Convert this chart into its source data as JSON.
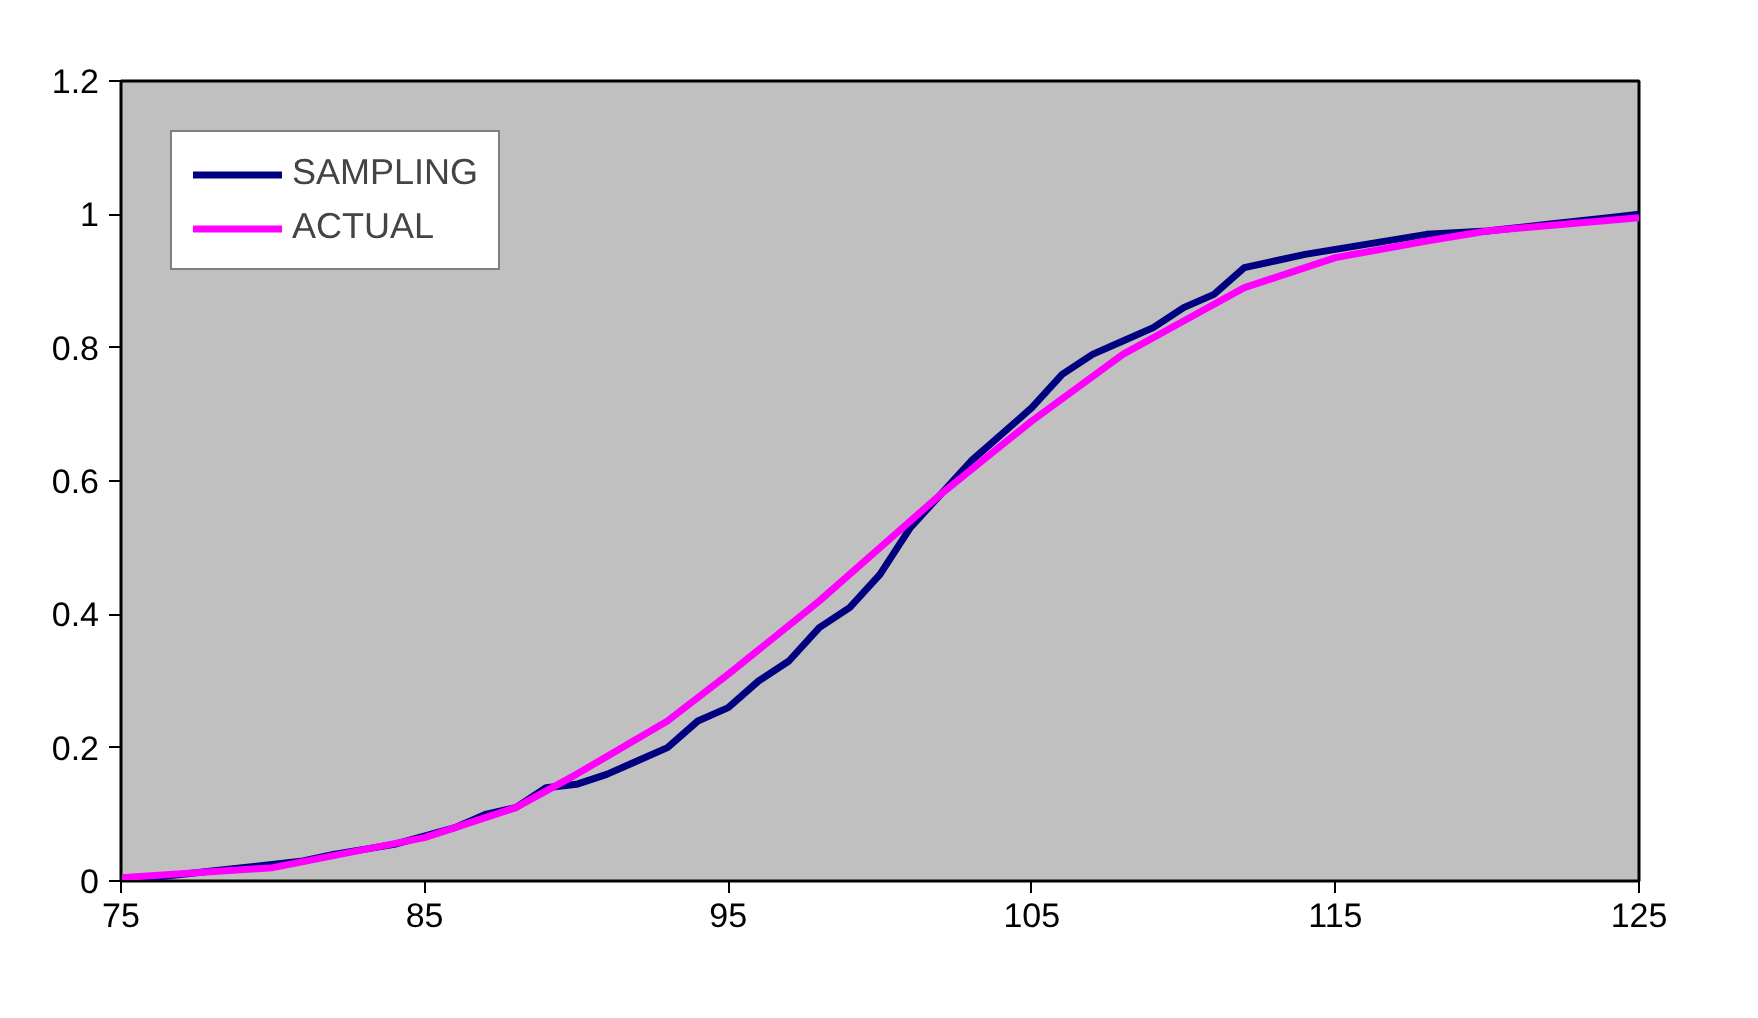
{
  "chart_data": {
    "type": "line",
    "xlim": [
      75,
      125
    ],
    "ylim": [
      0,
      1.2
    ],
    "xticks": [
      75,
      85,
      95,
      105,
      115,
      125
    ],
    "yticks": [
      0,
      {
        "value": 0.2,
        "label": "0.2"
      },
      {
        "value": 0.4,
        "label": "0.4"
      },
      {
        "value": 0.6,
        "label": "0.6"
      },
      {
        "value": 0.8,
        "label": "0.8"
      },
      1,
      {
        "value": 1.2,
        "label": "1.2"
      }
    ],
    "grid": false,
    "legend": "top left",
    "series": [
      {
        "name": "SAMPLING",
        "color": "#000080",
        "x": [
          75,
          78,
          81,
          82,
          84,
          86,
          87,
          88,
          89,
          90,
          91,
          92,
          93,
          94,
          95,
          96,
          97,
          98,
          99,
          100,
          101,
          102,
          103,
          104,
          105,
          106,
          107,
          108,
          109,
          110,
          111,
          112,
          113,
          114,
          116,
          118,
          120,
          122,
          124,
          125
        ],
        "values": [
          0.0,
          0.015,
          0.03,
          0.04,
          0.055,
          0.08,
          0.1,
          0.11,
          0.14,
          0.145,
          0.16,
          0.18,
          0.2,
          0.24,
          0.26,
          0.3,
          0.33,
          0.38,
          0.41,
          0.46,
          0.53,
          0.58,
          0.63,
          0.67,
          0.71,
          0.76,
          0.79,
          0.81,
          0.83,
          0.86,
          0.88,
          0.92,
          0.93,
          0.94,
          0.955,
          0.97,
          0.975,
          0.985,
          0.995,
          1.0
        ]
      },
      {
        "name": "ACTUAL",
        "color": "#ff00ff",
        "x": [
          75,
          80,
          85,
          88,
          90,
          93,
          95,
          98,
          100,
          102,
          105,
          108,
          110,
          112,
          115,
          118,
          120,
          125
        ],
        "values": [
          0.005,
          0.02,
          0.065,
          0.11,
          0.16,
          0.24,
          0.31,
          0.42,
          0.5,
          0.58,
          0.69,
          0.79,
          0.84,
          0.89,
          0.935,
          0.96,
          0.975,
          0.995
        ]
      }
    ]
  }
}
